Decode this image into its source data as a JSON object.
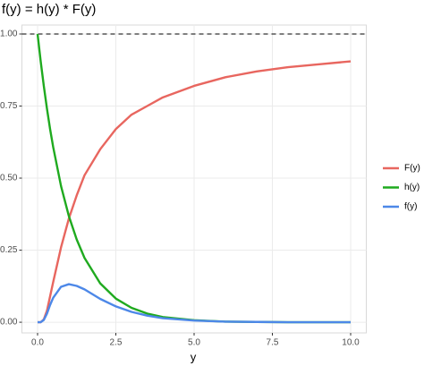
{
  "chart_data": {
    "type": "line",
    "title": "f(y) = h(y) * F(y)",
    "x_label": "y",
    "x": [
      0,
      0.1,
      0.2,
      0.3,
      0.4,
      0.5,
      0.75,
      1,
      1.25,
      1.5,
      2,
      2.5,
      3,
      3.5,
      4,
      5,
      6,
      7,
      8,
      9,
      10
    ],
    "series": [
      {
        "name": "F(y)",
        "color": "#e8665f",
        "values": [
          0,
          0.0,
          0.01,
          0.04,
          0.09,
          0.14,
          0.26,
          0.36,
          0.44,
          0.51,
          0.6,
          0.67,
          0.72,
          0.75,
          0.78,
          0.82,
          0.85,
          0.87,
          0.885,
          0.895,
          0.905
        ]
      },
      {
        "name": "h(y)",
        "color": "#1faa1f",
        "values": [
          1,
          0.905,
          0.819,
          0.741,
          0.67,
          0.607,
          0.472,
          0.368,
          0.287,
          0.223,
          0.135,
          0.082,
          0.05,
          0.03,
          0.018,
          0.007,
          0.002,
          0.001,
          0,
          0,
          0
        ]
      },
      {
        "name": "f(y)",
        "color": "#4d88e8",
        "values": [
          0,
          0,
          0.008,
          0.03,
          0.06,
          0.085,
          0.123,
          0.132,
          0.126,
          0.114,
          0.081,
          0.055,
          0.036,
          0.023,
          0.014,
          0.006,
          0.002,
          0.001,
          0,
          0,
          0
        ]
      }
    ],
    "hline": 1,
    "xlim": [
      -0.5,
      10.5
    ],
    "ylim": [
      -0.037,
      1.031
    ],
    "xticks": [
      {
        "value": 0,
        "label": "0.0"
      },
      2.5,
      {
        "value": 5,
        "label": "5.0"
      },
      7.5,
      {
        "value": 10,
        "label": "10.0"
      }
    ],
    "yticks": [
      {
        "value": 0,
        "label": "0.00"
      },
      {
        "value": 0.25,
        "label": "0.25"
      },
      {
        "value": 0.5,
        "label": "0.50"
      },
      {
        "value": 0.75,
        "label": "0.75"
      },
      {
        "value": 1,
        "label": "1.00"
      }
    ],
    "grid": true
  }
}
